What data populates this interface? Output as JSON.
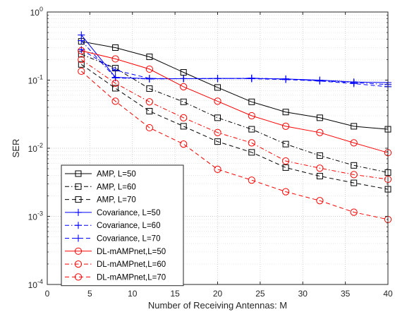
{
  "chart_data": {
    "type": "line",
    "title": "",
    "xlabel": "Number of Receiving Antennas: M",
    "ylabel": "SER",
    "xlim": [
      0,
      40
    ],
    "ylim": [
      0.0001,
      1
    ],
    "yscale": "log",
    "grid": true,
    "legend_position": "bottom-left",
    "xticks": [
      "0",
      "5",
      "10",
      "15",
      "20",
      "25",
      "30",
      "35",
      "40"
    ],
    "yticks": [
      {
        "base": "10",
        "exp": "-4"
      },
      {
        "base": "10",
        "exp": "-3"
      },
      {
        "base": "10",
        "exp": "-2"
      },
      {
        "base": "10",
        "exp": "-1"
      },
      {
        "base": "10",
        "exp": "0"
      }
    ],
    "series": [
      {
        "name": "AMP, L=50",
        "color": "#000000",
        "dash": "solid",
        "marker": "square",
        "x": [
          4,
          8,
          12,
          16,
          20,
          24,
          28,
          32,
          36,
          40
        ],
        "y": [
          0.37,
          0.3,
          0.22,
          0.13,
          0.078,
          0.048,
          0.034,
          0.028,
          0.021,
          0.019
        ]
      },
      {
        "name": "AMP, L=60",
        "color": "#000000",
        "dash": "dashdot",
        "marker": "square",
        "x": [
          4,
          8,
          12,
          16,
          20,
          24,
          28,
          32,
          36,
          40
        ],
        "y": [
          0.24,
          0.15,
          0.075,
          0.048,
          0.028,
          0.019,
          0.0115,
          0.0078,
          0.0056,
          0.0044
        ]
      },
      {
        "name": "AMP, L=70",
        "color": "#000000",
        "dash": "dashed",
        "marker": "square",
        "x": [
          4,
          8,
          12,
          16,
          20,
          24,
          28,
          32,
          36,
          40
        ],
        "y": [
          0.17,
          0.076,
          0.035,
          0.021,
          0.0125,
          0.0087,
          0.0052,
          0.0039,
          0.0031,
          0.0025
        ]
      },
      {
        "name": "Covariance, L=50",
        "color": "#0000ff",
        "dash": "solid",
        "marker": "plus",
        "x": [
          4,
          8,
          12,
          16,
          20,
          24,
          28,
          32,
          36,
          40
        ],
        "y": [
          0.46,
          0.11,
          0.105,
          0.105,
          0.106,
          0.106,
          0.104,
          0.1,
          0.094,
          0.092
        ]
      },
      {
        "name": "Covariance, L=60",
        "color": "#0000ff",
        "dash": "dashdot",
        "marker": "plus",
        "x": [
          4,
          8,
          12,
          16,
          20,
          24,
          28,
          32,
          36,
          40
        ],
        "y": [
          0.38,
          0.108,
          0.104,
          0.105,
          0.105,
          0.107,
          0.104,
          0.098,
          0.092,
          0.086
        ]
      },
      {
        "name": "Covariance, L=70",
        "color": "#0000ff",
        "dash": "dashed",
        "marker": "plus",
        "x": [
          4,
          8,
          12,
          16,
          20,
          24,
          28,
          32,
          36,
          40
        ],
        "y": [
          0.28,
          0.14,
          0.106,
          0.105,
          0.106,
          0.105,
          0.102,
          0.097,
          0.089,
          0.08
        ]
      },
      {
        "name": "DL-mAMPnet,L=50",
        "color": "#ff0000",
        "dash": "solid",
        "marker": "circle",
        "x": [
          4,
          8,
          12,
          16,
          20,
          24,
          28,
          32,
          36,
          40
        ],
        "y": [
          0.27,
          0.205,
          0.145,
          0.08,
          0.049,
          0.03,
          0.021,
          0.017,
          0.012,
          0.0086
        ]
      },
      {
        "name": "DL-mAMPnet,L=60",
        "color": "#ff0000",
        "dash": "dashdot",
        "marker": "circle",
        "x": [
          4,
          8,
          12,
          16,
          20,
          24,
          28,
          32,
          36,
          40
        ],
        "y": [
          0.2,
          0.09,
          0.048,
          0.028,
          0.017,
          0.012,
          0.0065,
          0.0051,
          0.0041,
          0.0035
        ]
      },
      {
        "name": "DL-mAMPnet,L=70",
        "color": "#ff0000",
        "dash": "dashed",
        "marker": "circle",
        "x": [
          4,
          8,
          12,
          16,
          20,
          24,
          28,
          32,
          36,
          40
        ],
        "y": [
          0.135,
          0.049,
          0.02,
          0.0115,
          0.0049,
          0.0034,
          0.0023,
          0.0017,
          0.00115,
          0.0009
        ]
      }
    ]
  }
}
